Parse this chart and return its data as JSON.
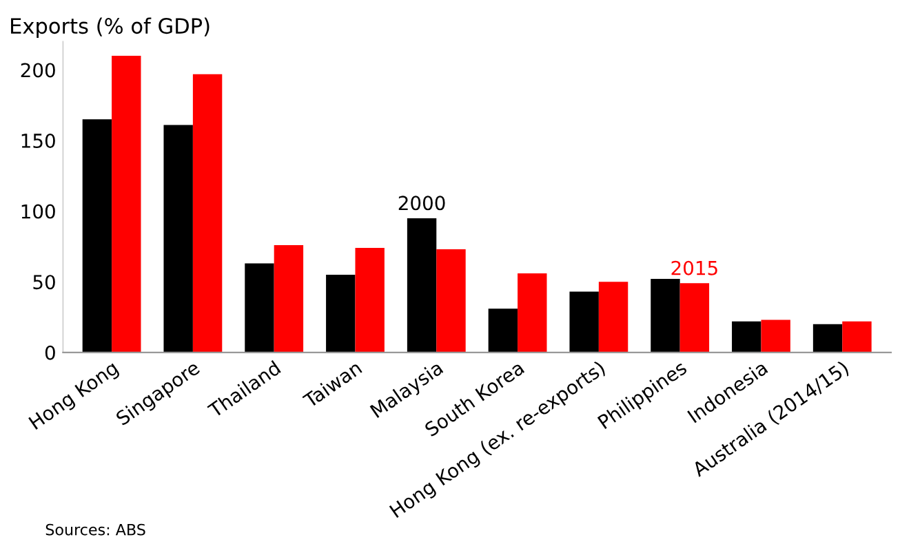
{
  "chart_data": {
    "type": "bar",
    "ylabel": "Exports (% of GDP)",
    "categories": [
      "Hong Kong",
      "Singapore",
      "Thailand",
      "Taiwan",
      "Malaysia",
      "South Korea",
      "Hong Kong (ex. re-exports)",
      "Philippines",
      "Indonesia",
      "Australia (2014/15)"
    ],
    "series": [
      {
        "name": "2000",
        "color": "#000000",
        "values": [
          165,
          161,
          63,
          55,
          95,
          31,
          43,
          52,
          22,
          20
        ]
      },
      {
        "name": "2015",
        "color": "#ff0000",
        "values": [
          210,
          197,
          76,
          74,
          73,
          56,
          50,
          49,
          23,
          22
        ]
      }
    ],
    "ylim": [
      0,
      220
    ],
    "yticks": [
      0,
      50,
      100,
      150,
      200
    ],
    "grid": false,
    "legend": false,
    "annotations": [
      "Sources: ABS"
    ]
  }
}
